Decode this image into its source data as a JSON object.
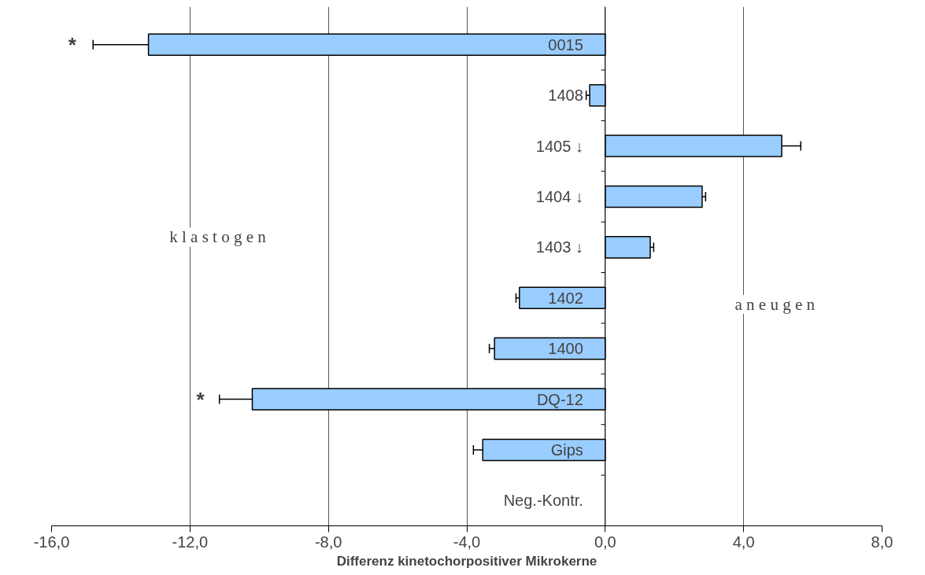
{
  "chart_data": {
    "type": "bar",
    "orientation": "horizontal",
    "xlabel": "Differenz kinetochorpositiver Mikrokerne",
    "categories": [
      "0015",
      "1408",
      "1405 ↓",
      "1404 ↓",
      "1403 ↓",
      "1402",
      "1400",
      "DQ-12",
      "Gips",
      "Neg.-Kontr."
    ],
    "values": [
      -13.2,
      -0.45,
      5.1,
      2.8,
      1.3,
      -2.48,
      -3.2,
      -10.2,
      -3.54,
      0
    ],
    "errors": [
      1.6,
      0.1,
      0.55,
      0.1,
      0.1,
      0.1,
      0.15,
      0.95,
      0.27,
      null
    ],
    "color": "#99ccff",
    "xlim": [
      -16,
      8
    ],
    "xticks": [
      {
        "value": -16,
        "label": "-16,0"
      },
      {
        "value": -12,
        "label": "-12,0"
      },
      {
        "value": -8,
        "label": "-8,0"
      },
      {
        "value": -4,
        "label": "-4,0"
      },
      {
        "value": 0,
        "label": "0,0"
      },
      {
        "value": 4,
        "label": "4,0"
      },
      {
        "value": 8,
        "label": "8,0"
      }
    ],
    "grid": "x",
    "tick_labels": "x",
    "annotations": [
      "*",
      "*",
      "k l a s t o g e n",
      "a n e u g e n"
    ]
  }
}
